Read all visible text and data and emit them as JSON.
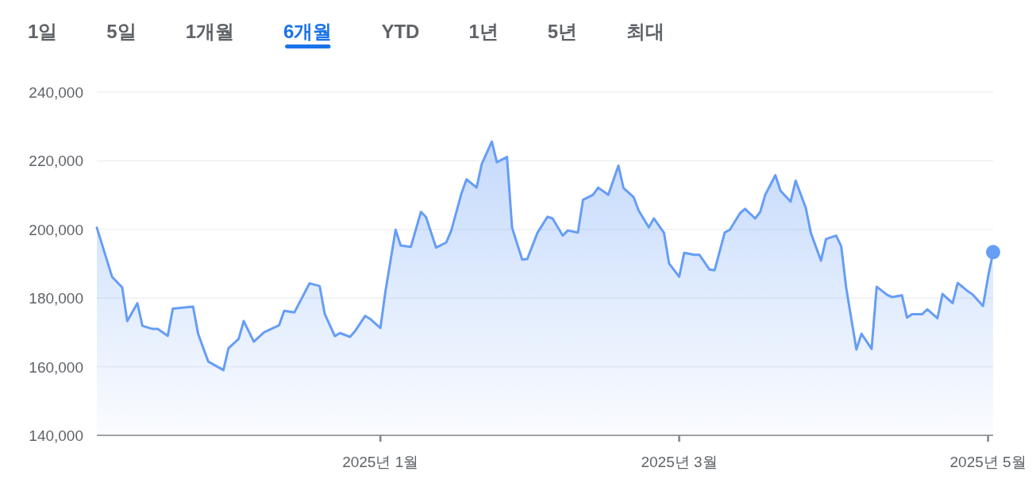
{
  "chart_data": {
    "type": "area",
    "color": "#669df6",
    "annotations": [
      "1일",
      "5일",
      "1개월",
      "6개월",
      "YTD",
      "1년",
      "5년",
      "최대"
    ],
    "x": [
      "2024-11-06",
      "2024-11-09",
      "2024-11-11",
      "2024-11-12",
      "2024-11-14",
      "2024-11-15",
      "2024-11-17",
      "2024-11-18",
      "2024-11-20",
      "2024-11-21",
      "2024-11-25",
      "2024-11-26",
      "2024-11-28",
      "2024-12-01",
      "2024-12-02",
      "2024-12-04",
      "2024-12-05",
      "2024-12-07",
      "2024-12-09",
      "2024-12-12",
      "2024-12-13",
      "2024-12-15",
      "2024-12-18",
      "2024-12-20",
      "2024-12-21",
      "2024-12-23",
      "2024-12-24",
      "2024-12-26",
      "2024-12-27",
      "2024-12-29",
      "2024-12-30",
      "2025-01-01",
      "2025-01-02",
      "2025-01-04",
      "2025-01-05",
      "2025-01-07",
      "2025-01-09",
      "2025-01-10",
      "2025-01-12",
      "2025-01-14",
      "2025-01-15",
      "2025-01-17",
      "2025-01-18",
      "2025-01-20",
      "2025-01-21",
      "2025-01-23",
      "2025-01-24",
      "2025-01-26",
      "2025-01-27",
      "2025-01-29",
      "2025-01-30",
      "2025-02-01",
      "2025-02-03",
      "2025-02-04",
      "2025-02-06",
      "2025-02-07",
      "2025-02-09",
      "2025-02-10",
      "2025-02-12",
      "2025-02-13",
      "2025-02-15",
      "2025-02-17",
      "2025-02-18",
      "2025-02-20",
      "2025-02-21",
      "2025-02-23",
      "2025-02-24",
      "2025-02-26",
      "2025-02-27",
      "2025-03-01",
      "2025-03-02",
      "2025-03-04",
      "2025-03-05",
      "2025-03-07",
      "2025-03-08",
      "2025-03-10",
      "2025-03-11",
      "2025-03-13",
      "2025-03-14",
      "2025-03-16",
      "2025-03-17",
      "2025-03-18",
      "2025-03-20",
      "2025-03-21",
      "2025-03-23",
      "2025-03-24",
      "2025-03-26",
      "2025-03-27",
      "2025-03-29",
      "2025-03-30",
      "2025-04-01",
      "2025-04-02",
      "2025-04-03",
      "2025-04-05",
      "2025-04-06",
      "2025-04-08",
      "2025-04-09",
      "2025-04-11",
      "2025-04-12",
      "2025-04-14",
      "2025-04-15",
      "2025-04-16",
      "2025-04-18",
      "2025-04-19",
      "2025-04-21",
      "2025-04-22",
      "2025-04-24",
      "2025-04-25",
      "2025-04-27",
      "2025-04-28",
      "2025-04-30",
      "2025-05-01",
      "2025-05-02"
    ],
    "values": [
      200500,
      186200,
      183100,
      173300,
      178500,
      171900,
      171000,
      171000,
      169000,
      176900,
      177500,
      169600,
      161500,
      159000,
      165400,
      168100,
      173300,
      167300,
      170000,
      172100,
      176300,
      175800,
      184300,
      183500,
      175400,
      168900,
      169800,
      168700,
      170400,
      174800,
      173900,
      171300,
      182000,
      199900,
      195300,
      194900,
      205100,
      203600,
      194700,
      196200,
      199700,
      210500,
      214600,
      212200,
      219000,
      225600,
      219600,
      221100,
      200500,
      191200,
      191400,
      199000,
      203700,
      203200,
      198200,
      199700,
      199100,
      208600,
      210100,
      212200,
      210100,
      218600,
      212100,
      209400,
      205500,
      200600,
      203200,
      199000,
      190100,
      186200,
      193200,
      192600,
      192600,
      188300,
      188100,
      199100,
      199900,
      204700,
      206000,
      203200,
      205100,
      210100,
      215800,
      211300,
      208100,
      214200,
      206300,
      199000,
      190900,
      197200,
      198200,
      195100,
      182800,
      165000,
      169600,
      165200,
      183300,
      181000,
      180300,
      180800,
      174300,
      175300,
      175300,
      176700,
      174100,
      181200,
      178500,
      184400,
      182000,
      181000,
      177700,
      186200,
      193400
    ],
    "xlim": [
      "2024-11-06",
      "2025-05-02"
    ],
    "xticks": [
      {
        "value": "2025-01-01",
        "label": "2025년 1월"
      },
      {
        "value": "2025-03-01",
        "label": "2025년 3월"
      },
      {
        "value": "2025-05-01",
        "label": "2025년 5월"
      }
    ],
    "ylim": [
      140000,
      240000
    ],
    "yticks": [
      {
        "value": 140000,
        "label": "140,000"
      },
      {
        "value": 160000,
        "label": "160,000"
      },
      {
        "value": 180000,
        "label": "180,000"
      },
      {
        "value": 200000,
        "label": "200,000"
      },
      {
        "value": 220000,
        "label": "220,000"
      },
      {
        "value": 240000,
        "label": "240,000"
      }
    ],
    "grid": "y"
  }
}
